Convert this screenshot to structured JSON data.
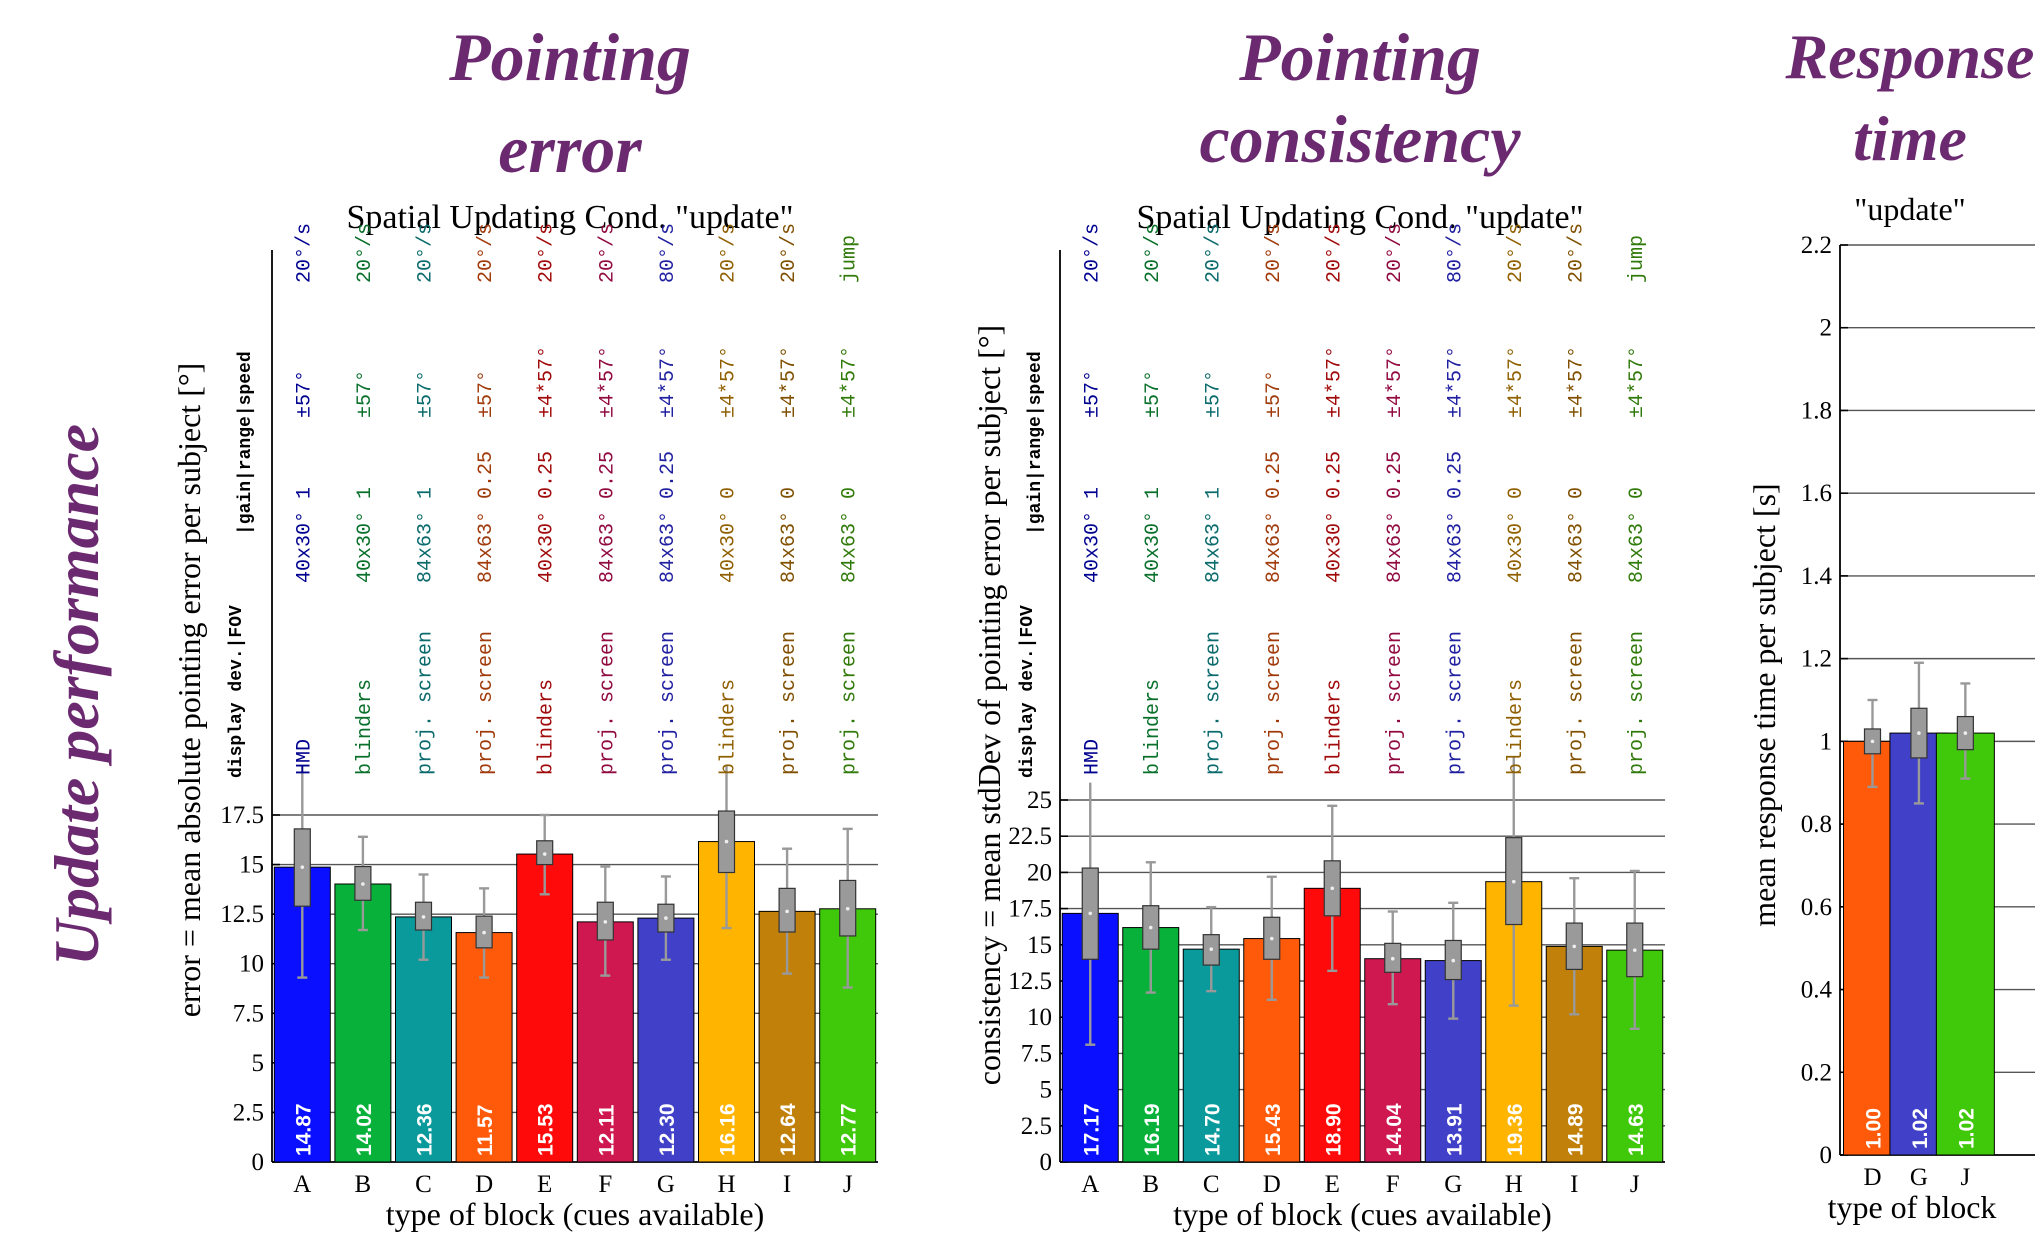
{
  "row_label": "Update performance",
  "colors": {
    "title": "#6b2a70",
    "bars": [
      "#0a10ff",
      "#08b13a",
      "#0a9a9c",
      "#ff5a0a",
      "#ff0a0a",
      "#d01850",
      "#4040c8",
      "#ffb400",
      "#c0800a",
      "#40c80a"
    ],
    "text_cols": [
      "#000090",
      "#08702a",
      "#0a6a6c",
      "#a03a0a",
      "#a00a0a",
      "#900a40",
      "#2020a0",
      "#906000",
      "#805000",
      "#307a0a"
    ]
  },
  "panels": [
    {
      "title": "Pointing\nerror",
      "subtitle": "Spatial Updating Cond. \"update\"",
      "annotation_header": [
        "display dev.|FOV",
        "|gain|range|speed"
      ],
      "annotations": [
        [
          "HMD",
          "40x30° 1",
          "±57°",
          "20°/s"
        ],
        [
          "blinders",
          "40x30° 1",
          "±57°",
          "20°/s"
        ],
        [
          "proj. screen",
          "84x63° 1",
          "±57°",
          "20°/s"
        ],
        [
          "proj. screen",
          "84x63° 0.25",
          "±57°",
          "20°/s"
        ],
        [
          "blinders",
          "40x30° 0.25",
          "±4*57°",
          "20°/s"
        ],
        [
          "proj. screen",
          "84x63° 0.25",
          "±4*57°",
          "20°/s"
        ],
        [
          "proj. screen",
          "84x63° 0.25",
          "±4*57°",
          "80°/s"
        ],
        [
          "blinders",
          "40x30° 0",
          "±4*57°",
          "20°/s"
        ],
        [
          "proj. screen",
          "84x63° 0",
          "±4*57°",
          "20°/s"
        ],
        [
          "proj. screen",
          "84x63° 0",
          "±4*57°",
          "jump"
        ]
      ]
    },
    {
      "title": "Pointing\nconsistency",
      "subtitle": "Spatial Updating Cond. \"update\"",
      "annotation_header": [
        "display dev.|FOV",
        "|gain|range|speed"
      ],
      "annotations": [
        [
          "HMD",
          "40x30° 1",
          "±57°",
          "20°/s"
        ],
        [
          "blinders",
          "40x30° 1",
          "±57°",
          "20°/s"
        ],
        [
          "proj. screen",
          "84x63° 1",
          "±57°",
          "20°/s"
        ],
        [
          "proj. screen",
          "84x63° 0.25",
          "±57°",
          "20°/s"
        ],
        [
          "blinders",
          "40x30° 0.25",
          "±4*57°",
          "20°/s"
        ],
        [
          "proj. screen",
          "84x63° 0.25",
          "±4*57°",
          "20°/s"
        ],
        [
          "proj. screen",
          "84x63° 0.25",
          "±4*57°",
          "80°/s"
        ],
        [
          "blinders",
          "40x30° 0",
          "±4*57°",
          "20°/s"
        ],
        [
          "proj. screen",
          "84x63° 0",
          "±4*57°",
          "20°/s"
        ],
        [
          "proj. screen",
          "84x63° 0",
          "±4*57°",
          "jump"
        ]
      ]
    },
    {
      "title": "Response\ntime",
      "subtitle": "\"update\""
    }
  ],
  "chart_data": [
    {
      "type": "bar",
      "xlabel": "type of block (cues available)",
      "ylabel": "error = mean absolute pointing error per subject [°]",
      "categories": [
        "A",
        "B",
        "C",
        "D",
        "E",
        "F",
        "G",
        "H",
        "I",
        "J"
      ],
      "values": [
        14.87,
        14.02,
        12.36,
        11.57,
        15.53,
        12.11,
        12.3,
        16.16,
        12.64,
        12.77
      ],
      "value_labels": [
        "14.87",
        "14.02",
        "12.36",
        "11.57",
        "15.53",
        "12.11",
        "12.30",
        "16.16",
        "12.64",
        "12.77"
      ],
      "box_low": [
        12.9,
        13.2,
        11.7,
        10.8,
        15.0,
        11.2,
        11.6,
        14.6,
        11.6,
        11.4
      ],
      "box_high": [
        16.8,
        14.9,
        13.1,
        12.4,
        16.2,
        13.1,
        13.0,
        17.7,
        13.8,
        14.2
      ],
      "whisker_low": [
        9.3,
        11.7,
        10.2,
        9.3,
        13.5,
        9.4,
        10.2,
        11.8,
        9.5,
        8.8
      ],
      "whisker_high": [
        20.0,
        16.4,
        14.5,
        13.8,
        17.5,
        14.9,
        14.4,
        20.0,
        15.8,
        16.8
      ],
      "ylim": [
        0,
        17.5
      ],
      "yticks": [
        "0",
        "2.5",
        "5",
        "7.5",
        "10",
        "12.5",
        "15",
        "17.5"
      ],
      "grid": true
    },
    {
      "type": "bar",
      "xlabel": "type of block (cues available)",
      "ylabel": "consistency = mean stdDev of pointing error per subject [°]",
      "categories": [
        "A",
        "B",
        "C",
        "D",
        "E",
        "F",
        "G",
        "H",
        "I",
        "J"
      ],
      "values": [
        17.17,
        16.19,
        14.7,
        15.43,
        18.9,
        14.04,
        13.91,
        19.36,
        14.89,
        14.63
      ],
      "value_labels": [
        "17.17",
        "16.19",
        "14.70",
        "15.43",
        "18.90",
        "14.04",
        "13.91",
        "19.36",
        "14.89",
        "14.63"
      ],
      "box_low": [
        14.0,
        14.7,
        13.6,
        14.0,
        17.0,
        13.1,
        12.6,
        16.4,
        13.3,
        12.8
      ],
      "box_high": [
        20.3,
        17.7,
        15.7,
        16.9,
        20.8,
        15.1,
        15.3,
        22.4,
        16.5,
        16.5
      ],
      "whisker_low": [
        8.1,
        11.7,
        11.8,
        11.2,
        13.2,
        10.9,
        9.9,
        10.8,
        10.2,
        9.2
      ],
      "whisker_high": [
        26.2,
        20.7,
        17.6,
        19.7,
        24.6,
        17.3,
        17.9,
        28.0,
        19.6,
        20.1
      ],
      "ylim": [
        0,
        25
      ],
      "yticks": [
        "0",
        "2.5",
        "5",
        "7.5",
        "10",
        "12.5",
        "15",
        "17.5",
        "20",
        "22.5",
        "25"
      ],
      "grid": true
    },
    {
      "type": "bar",
      "xlabel": "type of block",
      "ylabel": "mean response time per subject [s]",
      "categories": [
        "D",
        "G",
        "J"
      ],
      "values": [
        1.0,
        1.02,
        1.02
      ],
      "value_labels": [
        "1.00",
        "1.02",
        "1.02"
      ],
      "box_low": [
        0.97,
        0.96,
        0.98
      ],
      "box_high": [
        1.03,
        1.08,
        1.06
      ],
      "whisker_low": [
        0.89,
        0.85,
        0.91
      ],
      "whisker_high": [
        1.1,
        1.19,
        1.14
      ],
      "ylim": [
        0,
        2.2
      ],
      "yticks": [
        "0",
        "0.2",
        "0.4",
        "0.6",
        "0.8",
        "1",
        "1.2",
        "1.4",
        "1.6",
        "1.8",
        "2",
        "2.2"
      ],
      "grid": true
    }
  ]
}
